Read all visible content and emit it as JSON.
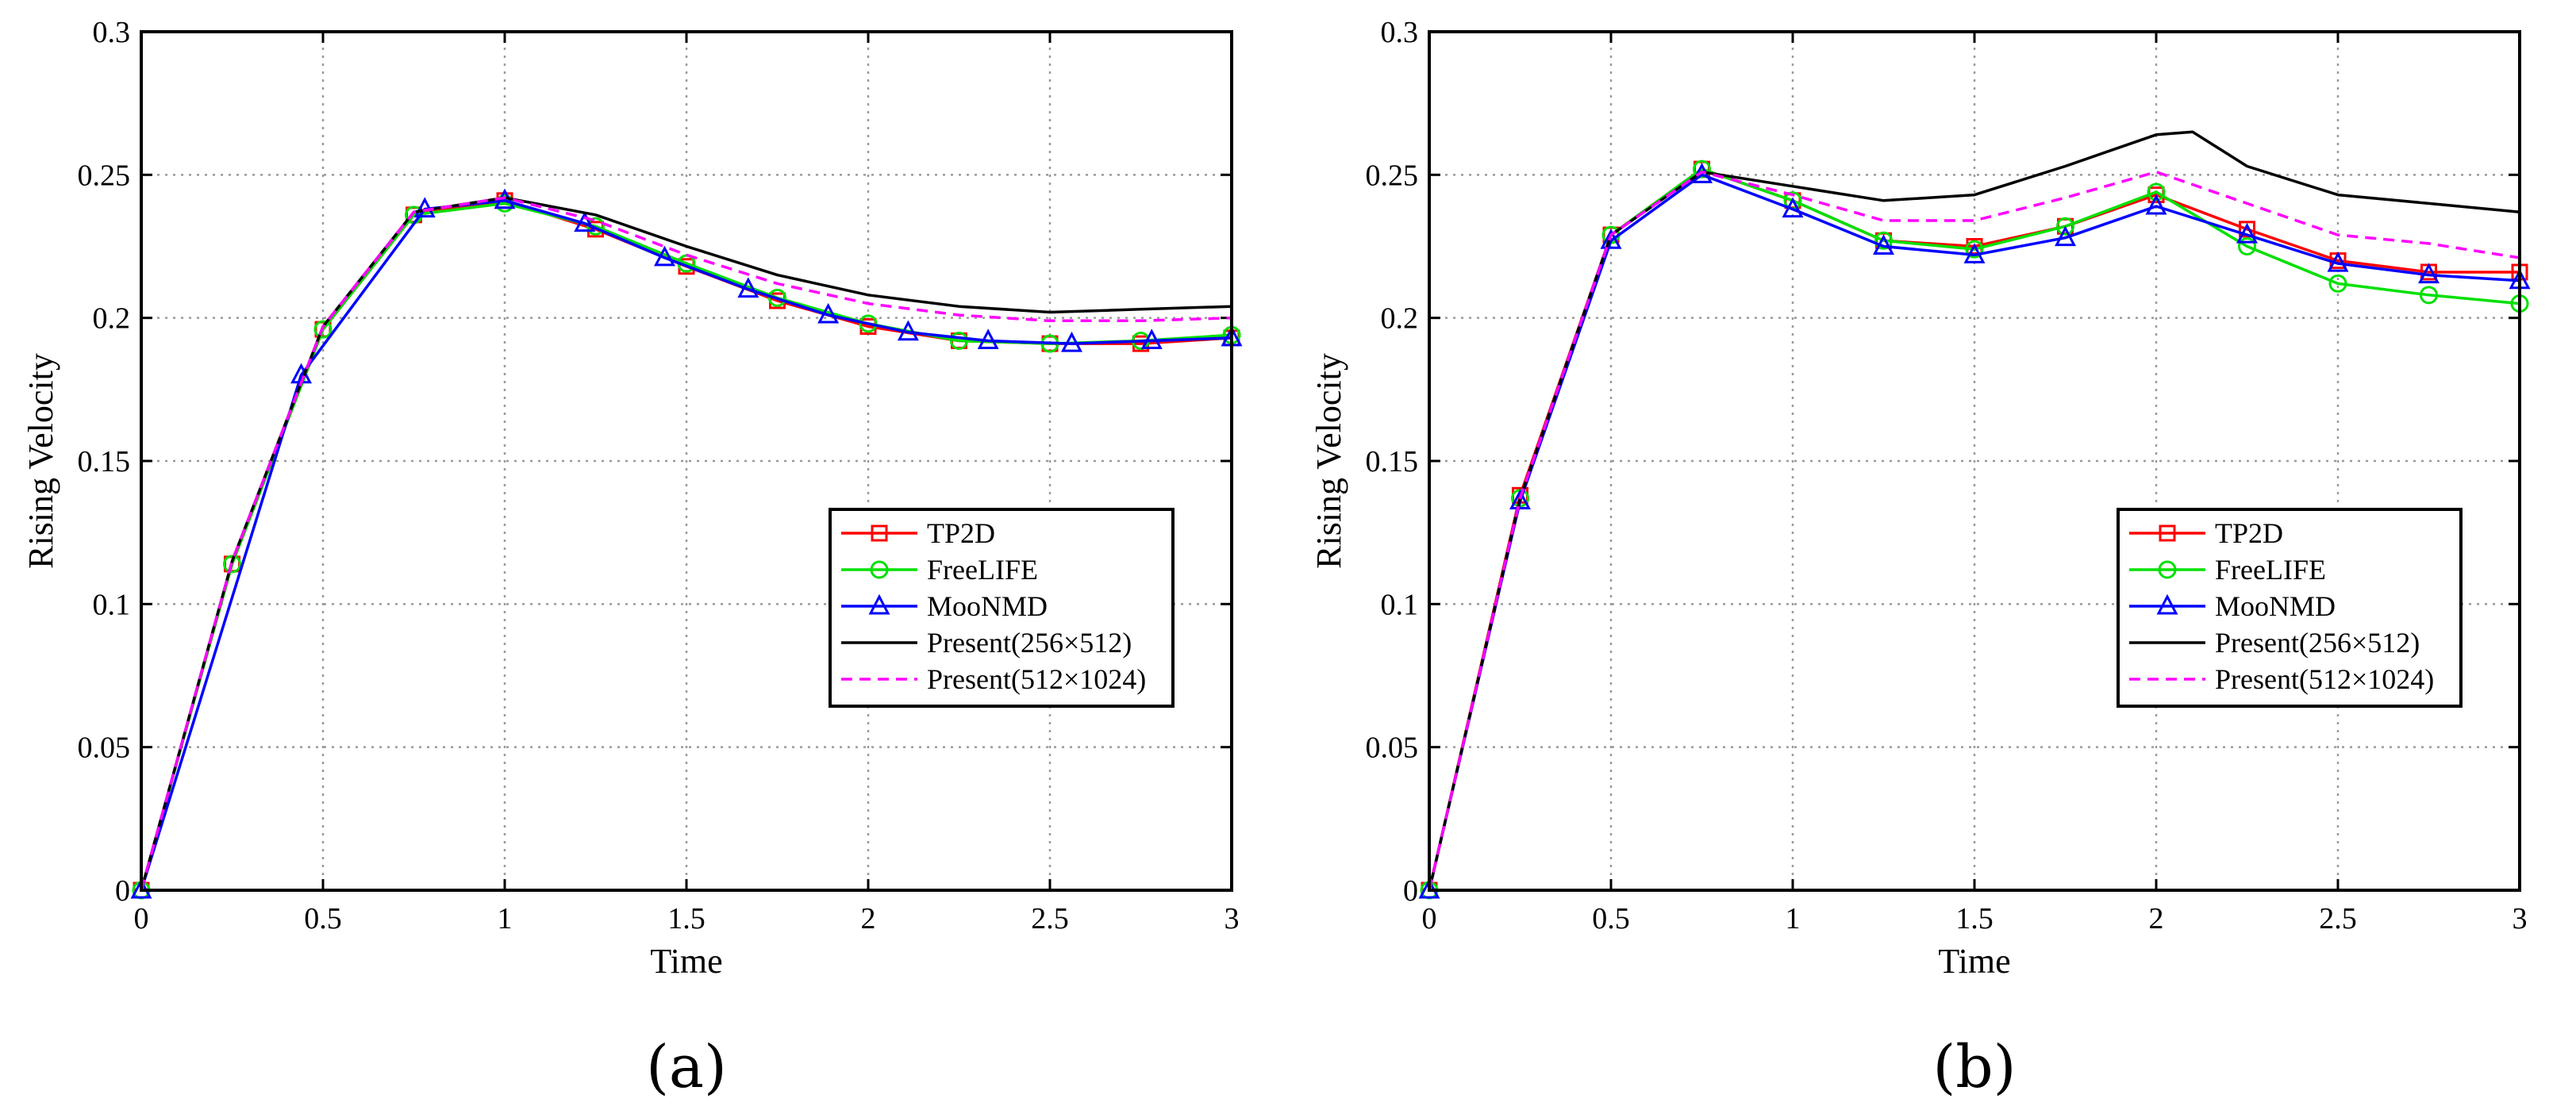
{
  "colors": {
    "TP2D": "#ff0000",
    "FreeLIFE": "#00e000",
    "MooNMD": "#0000ff",
    "Present256": "#000000",
    "Present512": "#ff00ff"
  },
  "chart_data": [
    {
      "type": "line",
      "panel_label": "(a)",
      "title": "",
      "xlabel": "Time",
      "ylabel": "Rising Velocity",
      "xlim": [
        0,
        3
      ],
      "ylim": [
        0,
        0.3
      ],
      "xticks": [
        0,
        0.5,
        1,
        1.5,
        2,
        2.5,
        3
      ],
      "xtick_labels": [
        "0",
        "0.5",
        "1",
        "1.5",
        "2",
        "2.5",
        "3"
      ],
      "yticks": [
        0,
        0.05,
        0.1,
        0.15,
        0.2,
        0.25,
        0.3
      ],
      "ytick_labels": [
        "0",
        "0.05",
        "0.1",
        "0.15",
        "0.2",
        "0.25",
        "0.3"
      ],
      "grid": true,
      "legend_position": "lower-right",
      "series": [
        {
          "name": "TP2D",
          "color_key": "TP2D",
          "marker": "square",
          "dash": false,
          "x": [
            0,
            0.25,
            0.5,
            0.75,
            1.0,
            1.25,
            1.5,
            1.75,
            2.0,
            2.25,
            2.5,
            2.75,
            3.0
          ],
          "y": [
            0,
            0.114,
            0.196,
            0.236,
            0.241,
            0.231,
            0.218,
            0.206,
            0.197,
            0.192,
            0.191,
            0.191,
            0.193
          ]
        },
        {
          "name": "FreeLIFE",
          "color_key": "FreeLIFE",
          "marker": "circle",
          "dash": false,
          "x": [
            0,
            0.25,
            0.5,
            0.75,
            1.0,
            1.25,
            1.5,
            1.75,
            2.0,
            2.25,
            2.5,
            2.75,
            3.0
          ],
          "y": [
            0,
            0.114,
            0.196,
            0.236,
            0.24,
            0.232,
            0.219,
            0.207,
            0.198,
            0.192,
            0.191,
            0.192,
            0.194
          ]
        },
        {
          "name": "MooNMD",
          "color_key": "MooNMD",
          "marker": "triangle",
          "dash": false,
          "x": [
            0,
            0.44,
            0.78,
            1.0,
            1.22,
            1.44,
            1.67,
            1.89,
            2.11,
            2.33,
            2.56,
            2.78,
            3.0
          ],
          "y": [
            0,
            0.18,
            0.238,
            0.241,
            0.233,
            0.221,
            0.21,
            0.201,
            0.195,
            0.192,
            0.191,
            0.192,
            0.193
          ]
        },
        {
          "name": "Present(256×512)",
          "color_key": "Present256",
          "marker": "none",
          "dash": false,
          "x": [
            0,
            0.25,
            0.5,
            0.75,
            1.0,
            1.25,
            1.5,
            1.75,
            2.0,
            2.25,
            2.5,
            2.75,
            3.0
          ],
          "y": [
            0,
            0.115,
            0.197,
            0.237,
            0.242,
            0.236,
            0.225,
            0.215,
            0.208,
            0.204,
            0.202,
            0.203,
            0.204
          ]
        },
        {
          "name": "Present(512×1024)",
          "color_key": "Present512",
          "marker": "none",
          "dash": true,
          "x": [
            0,
            0.25,
            0.5,
            0.75,
            1.0,
            1.25,
            1.5,
            1.75,
            2.0,
            2.25,
            2.5,
            2.75,
            3.0
          ],
          "y": [
            0,
            0.115,
            0.197,
            0.237,
            0.242,
            0.234,
            0.222,
            0.212,
            0.205,
            0.201,
            0.199,
            0.199,
            0.2
          ]
        }
      ]
    },
    {
      "type": "line",
      "panel_label": "(b)",
      "title": "",
      "xlabel": "Time",
      "ylabel": "Rising Velocity",
      "xlim": [
        0,
        3
      ],
      "ylim": [
        0,
        0.3
      ],
      "xticks": [
        0,
        0.5,
        1,
        1.5,
        2,
        2.5,
        3
      ],
      "xtick_labels": [
        "0",
        "0.5",
        "1",
        "1.5",
        "2",
        "2.5",
        "3"
      ],
      "yticks": [
        0,
        0.05,
        0.1,
        0.15,
        0.2,
        0.25,
        0.3
      ],
      "ytick_labels": [
        "0",
        "0.05",
        "0.1",
        "0.15",
        "0.2",
        "0.25",
        "0.3"
      ],
      "grid": true,
      "legend_position": "lower-right",
      "series": [
        {
          "name": "TP2D",
          "color_key": "TP2D",
          "marker": "square",
          "dash": false,
          "x": [
            0,
            0.25,
            0.5,
            0.75,
            1.0,
            1.25,
            1.5,
            1.75,
            2.0,
            2.25,
            2.5,
            2.75,
            3.0
          ],
          "y": [
            0,
            0.138,
            0.229,
            0.252,
            0.241,
            0.227,
            0.225,
            0.232,
            0.243,
            0.231,
            0.22,
            0.216,
            0.216
          ]
        },
        {
          "name": "FreeLIFE",
          "color_key": "FreeLIFE",
          "marker": "circle",
          "dash": false,
          "x": [
            0,
            0.25,
            0.5,
            0.75,
            1.0,
            1.25,
            1.5,
            1.75,
            2.0,
            2.25,
            2.5,
            2.75,
            3.0
          ],
          "y": [
            0,
            0.137,
            0.229,
            0.252,
            0.241,
            0.227,
            0.224,
            0.232,
            0.244,
            0.225,
            0.212,
            0.208,
            0.205
          ]
        },
        {
          "name": "MooNMD",
          "color_key": "MooNMD",
          "marker": "triangle",
          "dash": false,
          "x": [
            0,
            0.25,
            0.5,
            0.75,
            1.0,
            1.25,
            1.5,
            1.75,
            2.0,
            2.25,
            2.5,
            2.75,
            3.0
          ],
          "y": [
            0,
            0.136,
            0.227,
            0.25,
            0.238,
            0.225,
            0.222,
            0.228,
            0.239,
            0.229,
            0.219,
            0.215,
            0.213
          ]
        },
        {
          "name": "Present(256×512)",
          "color_key": "Present256",
          "marker": "none",
          "dash": false,
          "x": [
            0,
            0.25,
            0.5,
            0.75,
            1.0,
            1.25,
            1.5,
            1.75,
            2.0,
            2.1,
            2.25,
            2.5,
            2.75,
            3.0
          ],
          "y": [
            0,
            0.137,
            0.229,
            0.251,
            0.246,
            0.241,
            0.243,
            0.253,
            0.264,
            0.265,
            0.253,
            0.243,
            0.24,
            0.237
          ]
        },
        {
          "name": "Present(512×1024)",
          "color_key": "Present512",
          "marker": "none",
          "dash": true,
          "x": [
            0,
            0.25,
            0.5,
            0.75,
            1.0,
            1.25,
            1.5,
            1.75,
            2.0,
            2.25,
            2.5,
            2.75,
            3.0
          ],
          "y": [
            0,
            0.137,
            0.229,
            0.251,
            0.243,
            0.234,
            0.234,
            0.242,
            0.251,
            0.24,
            0.229,
            0.226,
            0.221
          ]
        }
      ]
    }
  ]
}
